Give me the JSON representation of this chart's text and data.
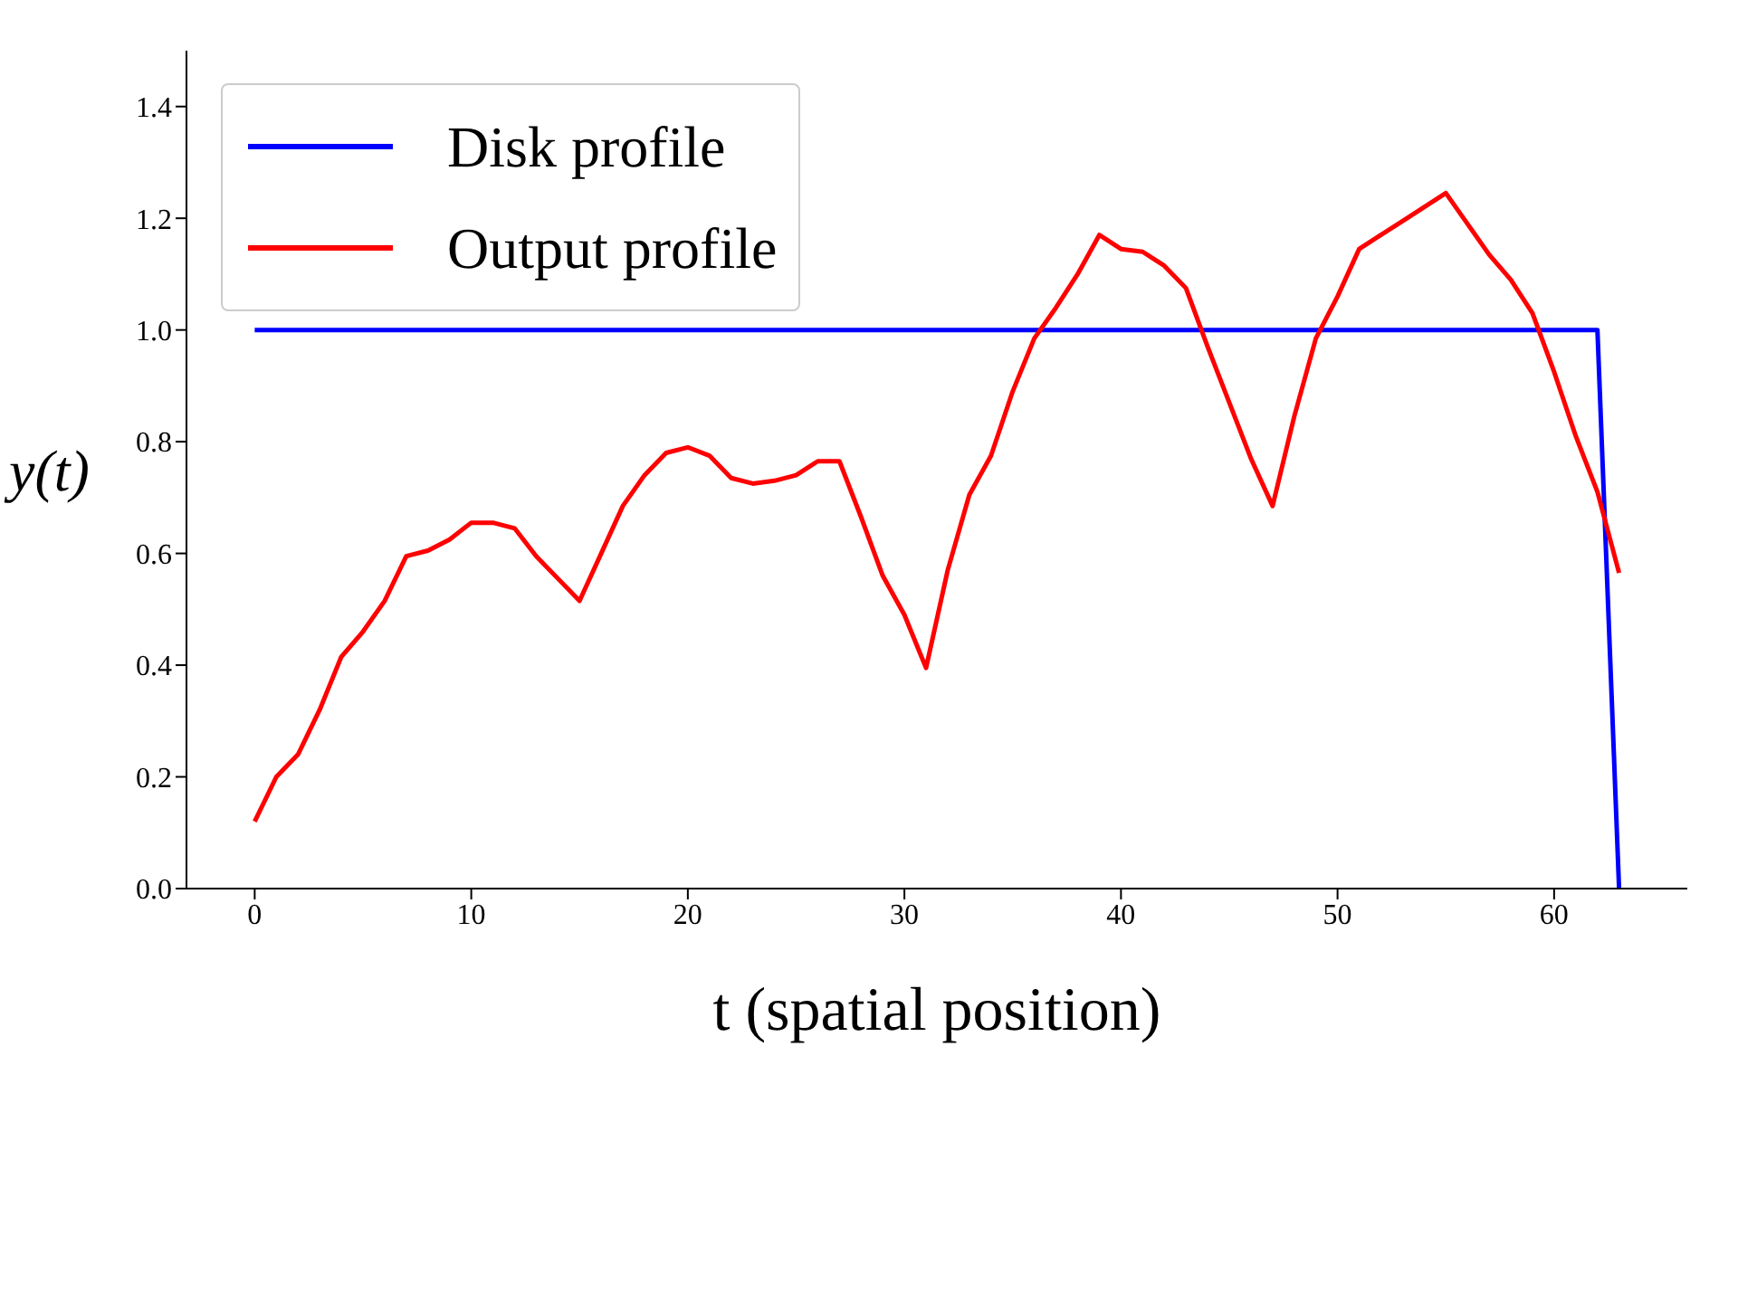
{
  "chart_data": {
    "type": "line",
    "xlabel": "t (spatial position)",
    "ylabel": "y(t)",
    "x": [
      0,
      1,
      2,
      3,
      4,
      5,
      6,
      7,
      8,
      9,
      10,
      11,
      12,
      13,
      14,
      15,
      16,
      17,
      18,
      19,
      20,
      21,
      22,
      23,
      24,
      25,
      26,
      27,
      28,
      29,
      30,
      31,
      32,
      33,
      34,
      35,
      36,
      37,
      38,
      39,
      40,
      41,
      42,
      43,
      44,
      45,
      46,
      47,
      48,
      49,
      50,
      51,
      52,
      53,
      54,
      55,
      56,
      57,
      58,
      59,
      60,
      61,
      62,
      63
    ],
    "series": [
      {
        "name": "Disk profile",
        "color": "#0000ff",
        "values": [
          1,
          1,
          1,
          1,
          1,
          1,
          1,
          1,
          1,
          1,
          1,
          1,
          1,
          1,
          1,
          1,
          1,
          1,
          1,
          1,
          1,
          1,
          1,
          1,
          1,
          1,
          1,
          1,
          1,
          1,
          1,
          1,
          1,
          1,
          1,
          1,
          1,
          1,
          1,
          1,
          1,
          1,
          1,
          1,
          1,
          1,
          1,
          1,
          1,
          1,
          1,
          1,
          1,
          1,
          1,
          1,
          1,
          1,
          1,
          1,
          1,
          1,
          1,
          0
        ]
      },
      {
        "name": "Output profile",
        "color": "#ff0000",
        "values": [
          0.12,
          0.2,
          0.24,
          0.32,
          0.415,
          0.46,
          0.515,
          0.595,
          0.605,
          0.625,
          0.655,
          0.655,
          0.645,
          0.595,
          0.555,
          0.515,
          0.6,
          0.685,
          0.74,
          0.78,
          0.79,
          0.775,
          0.735,
          0.725,
          0.73,
          0.74,
          0.765,
          0.765,
          0.665,
          0.56,
          0.49,
          0.395,
          0.57,
          0.705,
          0.775,
          0.89,
          0.985,
          1.04,
          1.1,
          1.17,
          1.145,
          1.14,
          1.115,
          1.075,
          0.97,
          0.87,
          0.77,
          0.685,
          0.845,
          0.985,
          1.06,
          1.145,
          1.17,
          1.195,
          1.22,
          1.245,
          1.19,
          1.135,
          1.09,
          1.03,
          0.925,
          0.81,
          0.71,
          0.565
        ]
      }
    ],
    "xlim": [
      -3.15,
      66.15
    ],
    "xticks": [
      0,
      10,
      20,
      30,
      40,
      50,
      60
    ],
    "ylim": [
      0,
      1.5
    ],
    "yticks": [
      {
        "value": 0,
        "label": "0.0"
      },
      {
        "value": 0.2,
        "label": "0.2"
      },
      {
        "value": 0.4,
        "label": "0.4"
      },
      {
        "value": 0.6,
        "label": "0.6"
      },
      {
        "value": 0.8,
        "label": "0.8"
      },
      {
        "value": 1,
        "label": "1.0"
      },
      {
        "value": 1.2,
        "label": "1.2"
      },
      {
        "value": 1.4,
        "label": "1.4"
      }
    ],
    "grid": false,
    "legend": "top left",
    "marker": "none",
    "line_style": "solid"
  }
}
